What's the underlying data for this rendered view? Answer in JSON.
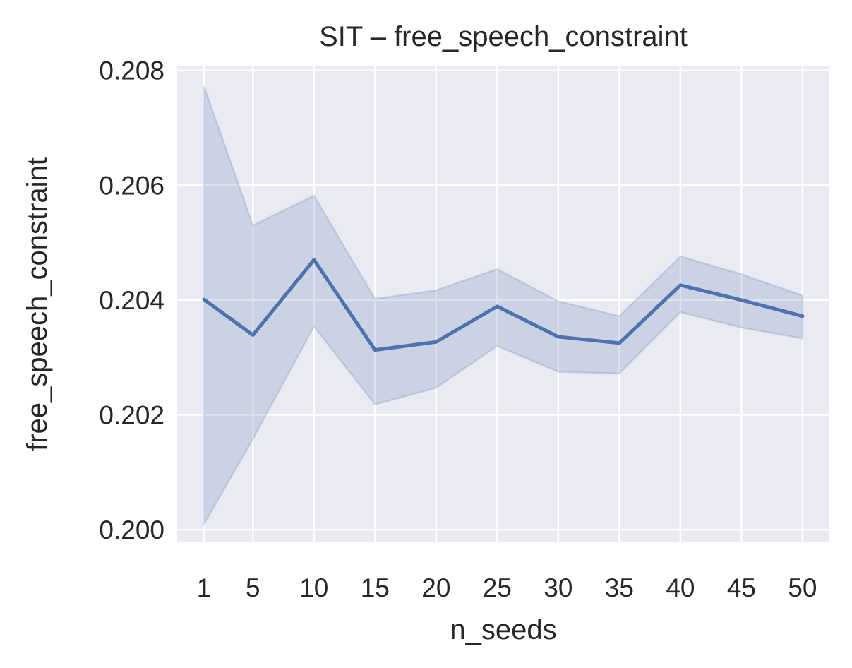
{
  "chart_data": {
    "type": "line",
    "title": "SIT – free_speech_constraint",
    "xlabel": "n_seeds",
    "ylabel": "free_speech_constraint",
    "x": [
      1,
      5,
      10,
      15,
      20,
      25,
      30,
      35,
      40,
      45,
      50
    ],
    "x_tick_labels": [
      "1",
      "5",
      "10",
      "15",
      "20",
      "25",
      "30",
      "35",
      "40",
      "45",
      "50"
    ],
    "y_ticks": [
      0.2,
      0.202,
      0.204,
      0.206,
      0.208
    ],
    "y_tick_labels": [
      "0.200",
      "0.202",
      "0.204",
      "0.206",
      "0.208"
    ],
    "xlim": [
      -1.2,
      52.2
    ],
    "ylim": [
      0.19978,
      0.20807
    ],
    "grid": true,
    "series": [
      {
        "values": [
          0.20401,
          0.20339,
          0.2047,
          0.20313,
          0.20327,
          0.20389,
          0.20336,
          0.20325,
          0.20426,
          0.204,
          0.20372
        ],
        "ci_lower": [
          0.2001,
          0.20158,
          0.20354,
          0.20218,
          0.20247,
          0.2032,
          0.20275,
          0.20272,
          0.20379,
          0.20352,
          0.20333
        ],
        "ci_upper": [
          0.20772,
          0.2053,
          0.20582,
          0.20402,
          0.20417,
          0.20454,
          0.20398,
          0.20372,
          0.20476,
          0.20445,
          0.20408
        ],
        "color": "#4c72b0"
      }
    ],
    "colors": {
      "background": "#eaeaf2",
      "grid": "#ffffff",
      "line": "#4c72b0",
      "band": "#4c72b0"
    }
  }
}
